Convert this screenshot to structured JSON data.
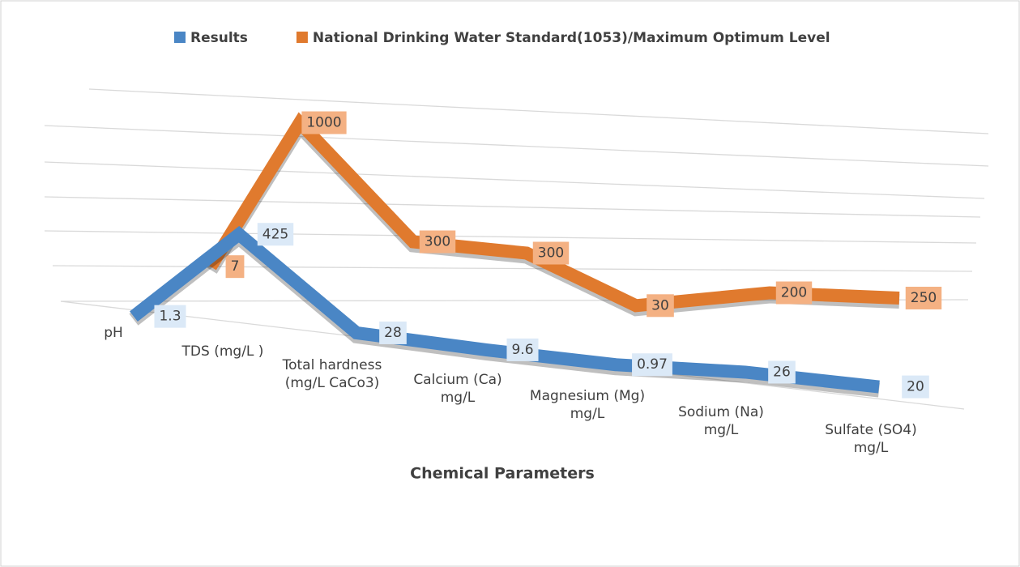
{
  "chart_data": {
    "type": "line3d",
    "categories": [
      "pH",
      "TDS (mg/L )",
      "Total hardness (mg/L  CaCo3)",
      "Calcium (Ca) mg/L",
      "Magnesium (Mg)   mg/L",
      "Sodium (Na) mg/L",
      "Sulfate (SO4) mg/L"
    ],
    "series": [
      {
        "name": "Results",
        "color": "#4a86c5",
        "values": [
          1.3,
          425,
          28,
          9.6,
          0.97,
          26,
          20
        ]
      },
      {
        "name": "National Drinking Water Standard(1053)/Maximum Optimum Level",
        "color": "#e07a2e",
        "values": [
          7,
          1000,
          300,
          300,
          30,
          200,
          250
        ]
      }
    ],
    "ylim": [
      0,
      1200
    ],
    "x_label": "Chemical Parameters",
    "legend": "top"
  }
}
